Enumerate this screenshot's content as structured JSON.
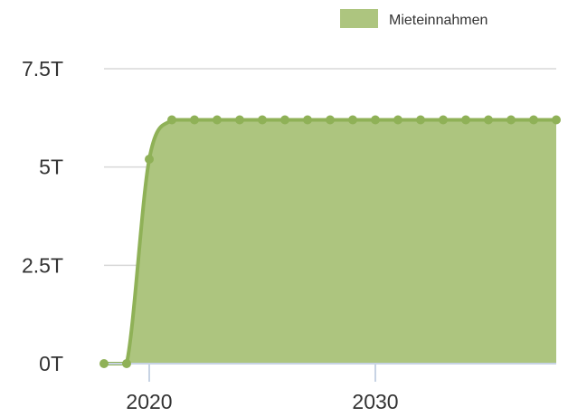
{
  "chart_data": {
    "type": "area",
    "title": "",
    "xlabel": "",
    "ylabel": "",
    "legend": {
      "placement": "top-right",
      "entries": [
        "Mieteinnahmen"
      ]
    },
    "grid": {
      "y": true,
      "x": false
    },
    "x": [
      2018,
      2019,
      2020,
      2021,
      2022,
      2023,
      2024,
      2025,
      2026,
      2027,
      2028,
      2029,
      2030,
      2031,
      2032,
      2033,
      2034,
      2035,
      2036,
      2037,
      2038
    ],
    "series": [
      {
        "name": "Mieteinnahmen",
        "color": "#8fb157",
        "fill": "#adc57f",
        "values": [
          0,
          0,
          5200,
          6200,
          6200,
          6200,
          6200,
          6200,
          6200,
          6200,
          6200,
          6200,
          6200,
          6200,
          6200,
          6200,
          6200,
          6200,
          6200,
          6200,
          6200
        ]
      }
    ],
    "xlim": [
      2018,
      2038
    ],
    "ylim": [
      0,
      7500
    ],
    "y_ticks": [
      {
        "value": 0,
        "label": "0T"
      },
      {
        "value": 2500,
        "label": "2.5T"
      },
      {
        "value": 5000,
        "label": "5T"
      },
      {
        "value": 7500,
        "label": "7.5T"
      }
    ],
    "x_ticks": [
      {
        "value": 2020,
        "label": "2020"
      },
      {
        "value": 2030,
        "label": "2030"
      }
    ]
  }
}
